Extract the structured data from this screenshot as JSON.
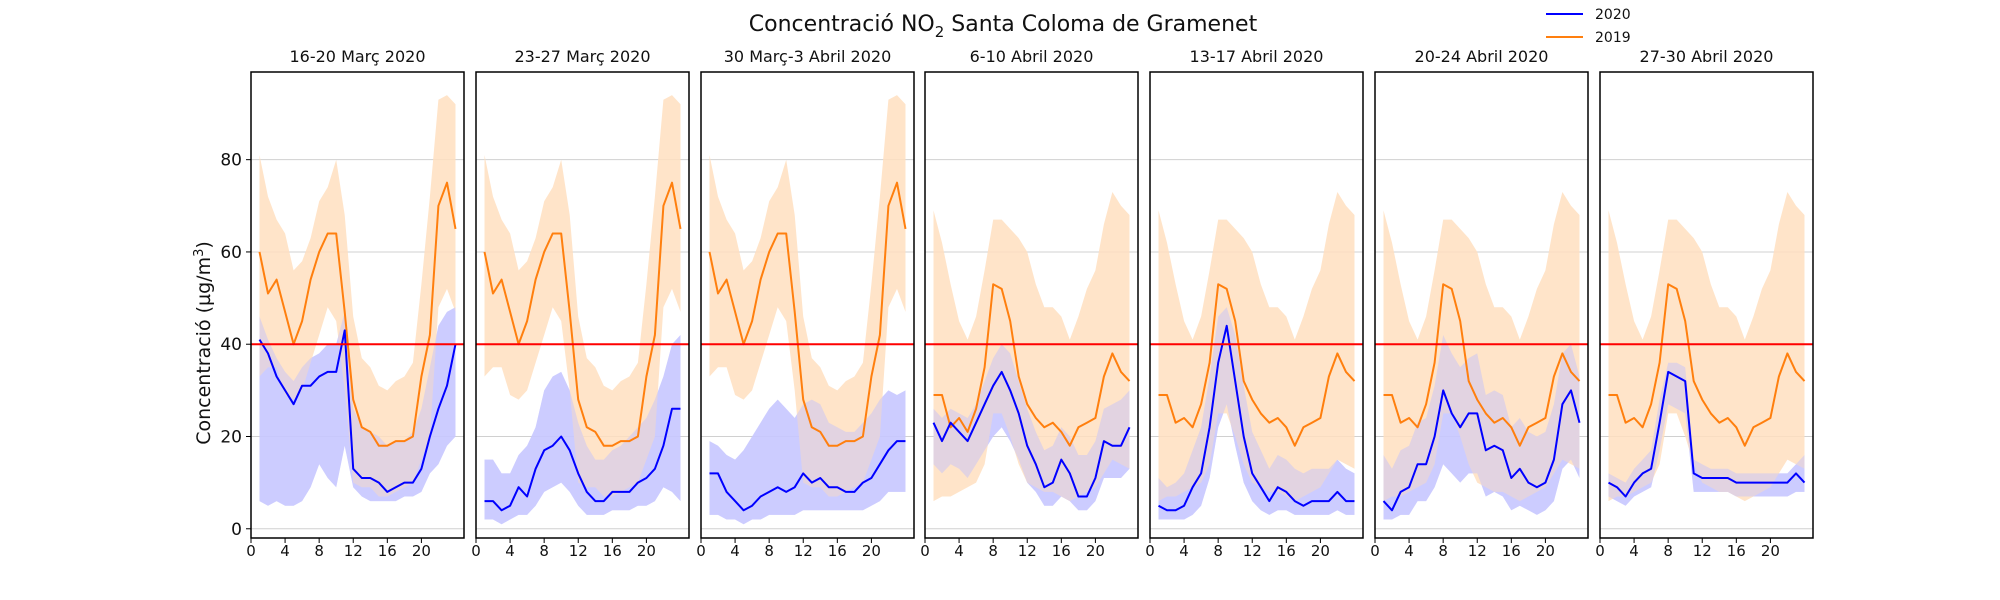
{
  "chart_data": {
    "type": "line",
    "title_main": "Concentració NO",
    "title_sub": "2",
    "title_rest": " Santa Coloma de Gramenet",
    "ylabel_main": "Concentració (µg/m",
    "ylabel_sup": "3",
    "ylabel_end": ")",
    "ylim": [
      -2,
      99
    ],
    "xlim": [
      0,
      25
    ],
    "yticks": [
      0,
      20,
      40,
      60,
      80
    ],
    "xticks": [
      0,
      4,
      8,
      12,
      16,
      20
    ],
    "x_hours": [
      1,
      2,
      3,
      4,
      5,
      6,
      7,
      8,
      9,
      10,
      11,
      12,
      13,
      14,
      15,
      16,
      17,
      18,
      19,
      20,
      21,
      22,
      23,
      24
    ],
    "reference_line": {
      "value": 40,
      "color": "#ff0000"
    },
    "grid": true,
    "legend": [
      {
        "name": "2020",
        "color": "#0000ff"
      },
      {
        "name": "2019",
        "color": "#ff7f0e"
      }
    ],
    "colors": {
      "line2020": "#0000ff",
      "line2019": "#ff7f0e",
      "band2020": "#c8c8ff",
      "band2019": "#ffdfbf",
      "overlap": "#c8a8d6"
    },
    "panels": [
      {
        "title": "16-20 Març 2020",
        "s2020": [
          41,
          38,
          33,
          30,
          27,
          31,
          31,
          33,
          34,
          34,
          43,
          13,
          11,
          11,
          10,
          8,
          9,
          10,
          10,
          13,
          20,
          26,
          31,
          40
        ],
        "b2020_lo": [
          6,
          5,
          6,
          5,
          5,
          6,
          9,
          14,
          11,
          9,
          18,
          9,
          7,
          6,
          6,
          6,
          6,
          7,
          7,
          8,
          12,
          14,
          18,
          20
        ],
        "b2020_hi": [
          46,
          41,
          37,
          34,
          32,
          35,
          37,
          38,
          40,
          40,
          47,
          26,
          22,
          21,
          20,
          18,
          19,
          19,
          21,
          26,
          35,
          44,
          47,
          48
        ],
        "s2019": [
          60,
          51,
          54,
          47,
          40,
          45,
          54,
          60,
          64,
          64,
          47,
          28,
          22,
          21,
          18,
          18,
          19,
          19,
          20,
          33,
          42,
          70,
          75,
          65
        ],
        "b2019_lo": [
          33,
          35,
          35,
          29,
          28,
          30,
          36,
          42,
          48,
          45,
          30,
          10,
          9,
          9,
          7,
          7,
          8,
          9,
          10,
          15,
          20,
          48,
          52,
          47
        ],
        "b2019_hi": [
          81,
          72,
          67,
          64,
          56,
          58,
          63,
          71,
          74,
          80,
          68,
          46,
          37,
          35,
          31,
          30,
          32,
          33,
          36,
          53,
          72,
          93,
          94,
          92
        ]
      },
      {
        "title": "23-27 Març 2020",
        "s2020": [
          6,
          6,
          4,
          5,
          9,
          7,
          13,
          17,
          18,
          20,
          17,
          12,
          8,
          6,
          6,
          8,
          8,
          8,
          10,
          11,
          13,
          18,
          26,
          26
        ],
        "b2020_lo": [
          2,
          2,
          1,
          2,
          3,
          3,
          5,
          8,
          9,
          10,
          8,
          5,
          3,
          3,
          3,
          4,
          4,
          4,
          5,
          5,
          6,
          9,
          8,
          6
        ],
        "b2020_hi": [
          15,
          15,
          12,
          12,
          16,
          18,
          22,
          30,
          33,
          34,
          30,
          23,
          18,
          15,
          15,
          17,
          18,
          20,
          22,
          24,
          28,
          33,
          40,
          42
        ],
        "s2019": [
          60,
          51,
          54,
          47,
          40,
          45,
          54,
          60,
          64,
          64,
          47,
          28,
          22,
          21,
          18,
          18,
          19,
          19,
          20,
          33,
          42,
          70,
          75,
          65
        ],
        "b2019_lo": [
          33,
          35,
          35,
          29,
          28,
          30,
          36,
          42,
          48,
          45,
          30,
          10,
          9,
          9,
          7,
          7,
          8,
          9,
          10,
          15,
          20,
          48,
          52,
          47
        ],
        "b2019_hi": [
          81,
          72,
          67,
          64,
          56,
          58,
          63,
          71,
          74,
          80,
          68,
          46,
          37,
          35,
          31,
          30,
          32,
          33,
          36,
          53,
          72,
          93,
          94,
          92
        ]
      },
      {
        "title": "30 Març-3 Abril 2020",
        "s2020": [
          12,
          12,
          8,
          6,
          4,
          5,
          7,
          8,
          9,
          8,
          9,
          12,
          10,
          11,
          9,
          9,
          8,
          8,
          10,
          11,
          14,
          17,
          19,
          19
        ],
        "b2020_lo": [
          3,
          3,
          2,
          2,
          1,
          2,
          2,
          3,
          3,
          3,
          3,
          4,
          4,
          4,
          4,
          4,
          4,
          4,
          4,
          5,
          6,
          8,
          8,
          8
        ],
        "b2020_hi": [
          19,
          18,
          16,
          15,
          17,
          20,
          23,
          26,
          28,
          26,
          24,
          27,
          28,
          27,
          23,
          22,
          21,
          21,
          23,
          25,
          28,
          30,
          29,
          30
        ],
        "s2019": [
          60,
          51,
          54,
          47,
          40,
          45,
          54,
          60,
          64,
          64,
          47,
          28,
          22,
          21,
          18,
          18,
          19,
          19,
          20,
          33,
          42,
          70,
          75,
          65
        ],
        "b2019_lo": [
          33,
          35,
          35,
          29,
          28,
          30,
          36,
          42,
          48,
          45,
          30,
          10,
          9,
          9,
          7,
          7,
          8,
          9,
          10,
          15,
          20,
          48,
          52,
          47
        ],
        "b2019_hi": [
          81,
          72,
          67,
          64,
          56,
          58,
          63,
          71,
          74,
          80,
          68,
          46,
          37,
          35,
          31,
          30,
          32,
          33,
          36,
          53,
          72,
          93,
          94,
          92
        ]
      },
      {
        "title": "6-10 Abril 2020",
        "s2020": [
          23,
          19,
          23,
          21,
          19,
          23,
          27,
          31,
          34,
          30,
          25,
          18,
          14,
          9,
          10,
          15,
          12,
          7,
          7,
          11,
          19,
          18,
          18,
          22
        ],
        "b2020_lo": [
          14,
          12,
          14,
          13,
          11,
          14,
          17,
          20,
          22,
          19,
          15,
          10,
          8,
          5,
          5,
          7,
          6,
          4,
          4,
          6,
          11,
          11,
          11,
          13
        ],
        "b2020_hi": [
          26,
          24,
          26,
          25,
          24,
          27,
          32,
          37,
          40,
          38,
          32,
          26,
          21,
          17,
          18,
          22,
          20,
          16,
          16,
          19,
          26,
          27,
          28,
          30
        ],
        "s2019": [
          29,
          29,
          22,
          24,
          21,
          26,
          35,
          53,
          52,
          45,
          33,
          27,
          24,
          22,
          23,
          21,
          18,
          22,
          23,
          24,
          33,
          38,
          34,
          32
        ],
        "b2019_lo": [
          6,
          7,
          7,
          8,
          9,
          10,
          14,
          25,
          25,
          20,
          14,
          10,
          9,
          8,
          8,
          7,
          6,
          7,
          8,
          9,
          12,
          15,
          14,
          13
        ],
        "b2019_hi": [
          69,
          62,
          53,
          45,
          41,
          46,
          56,
          67,
          67,
          65,
          63,
          60,
          53,
          48,
          48,
          46,
          41,
          46,
          52,
          56,
          66,
          73,
          70,
          68
        ]
      },
      {
        "title": "13-17 Abril 2020",
        "s2020": [
          5,
          4,
          4,
          5,
          9,
          12,
          22,
          36,
          44,
          32,
          20,
          12,
          9,
          6,
          9,
          8,
          6,
          5,
          6,
          6,
          6,
          8,
          6,
          6
        ],
        "b2020_lo": [
          2,
          2,
          2,
          2,
          3,
          5,
          11,
          22,
          27,
          18,
          10,
          6,
          4,
          3,
          4,
          4,
          3,
          3,
          3,
          3,
          3,
          4,
          3,
          3
        ],
        "b2020_hi": [
          11,
          9,
          10,
          12,
          17,
          22,
          33,
          46,
          48,
          42,
          31,
          21,
          17,
          13,
          16,
          15,
          13,
          12,
          13,
          13,
          13,
          15,
          13,
          12
        ],
        "s2019": [
          29,
          29,
          23,
          24,
          22,
          27,
          36,
          53,
          52,
          45,
          32,
          28,
          25,
          23,
          24,
          22,
          18,
          22,
          23,
          24,
          33,
          38,
          34,
          32
        ],
        "b2019_lo": [
          6,
          7,
          7,
          8,
          9,
          10,
          14,
          25,
          25,
          20,
          14,
          10,
          9,
          8,
          8,
          7,
          6,
          7,
          8,
          9,
          12,
          15,
          14,
          13
        ],
        "b2019_hi": [
          69,
          62,
          53,
          45,
          41,
          46,
          56,
          67,
          67,
          65,
          63,
          60,
          53,
          48,
          48,
          46,
          41,
          46,
          52,
          56,
          66,
          73,
          70,
          68
        ]
      },
      {
        "title": "20-24 Abril 2020",
        "s2020": [
          6,
          4,
          8,
          9,
          14,
          14,
          20,
          30,
          25,
          22,
          25,
          25,
          17,
          18,
          17,
          11,
          13,
          10,
          9,
          10,
          15,
          27,
          30,
          23
        ],
        "b2020_lo": [
          2,
          2,
          3,
          3,
          6,
          6,
          9,
          14,
          12,
          10,
          12,
          12,
          7,
          8,
          7,
          4,
          5,
          4,
          3,
          4,
          6,
          13,
          15,
          11
        ],
        "b2020_hi": [
          16,
          13,
          17,
          18,
          23,
          24,
          31,
          42,
          38,
          35,
          37,
          38,
          29,
          30,
          29,
          22,
          24,
          21,
          20,
          21,
          27,
          38,
          40,
          33
        ],
        "s2019": [
          29,
          29,
          23,
          24,
          22,
          27,
          36,
          53,
          52,
          45,
          32,
          28,
          25,
          23,
          24,
          22,
          18,
          22,
          23,
          24,
          33,
          38,
          34,
          32
        ],
        "b2019_lo": [
          6,
          7,
          7,
          8,
          9,
          10,
          14,
          25,
          25,
          20,
          14,
          10,
          9,
          8,
          8,
          7,
          6,
          7,
          8,
          9,
          12,
          15,
          14,
          13
        ],
        "b2019_hi": [
          69,
          62,
          53,
          45,
          41,
          46,
          56,
          67,
          67,
          65,
          63,
          60,
          53,
          48,
          48,
          46,
          41,
          46,
          52,
          56,
          66,
          73,
          70,
          68
        ]
      },
      {
        "title": "27-30 Abril 2020",
        "s2020": [
          10,
          9,
          7,
          10,
          12,
          13,
          23,
          34,
          33,
          32,
          12,
          11,
          11,
          11,
          11,
          10,
          10,
          10,
          10,
          10,
          10,
          10,
          12,
          10
        ],
        "b2020_lo": [
          7,
          6,
          5,
          7,
          8,
          9,
          17,
          27,
          26,
          25,
          8,
          8,
          8,
          8,
          8,
          7,
          7,
          7,
          7,
          7,
          7,
          7,
          8,
          8
        ],
        "b2020_hi": [
          12,
          11,
          10,
          13,
          15,
          17,
          28,
          36,
          36,
          35,
          15,
          14,
          13,
          13,
          13,
          12,
          12,
          12,
          12,
          12,
          12,
          12,
          14,
          16
        ],
        "s2019": [
          29,
          29,
          23,
          24,
          22,
          27,
          36,
          53,
          52,
          45,
          32,
          28,
          25,
          23,
          24,
          22,
          18,
          22,
          23,
          24,
          33,
          38,
          34,
          32
        ],
        "b2019_lo": [
          6,
          7,
          7,
          8,
          9,
          10,
          14,
          25,
          25,
          20,
          14,
          10,
          9,
          8,
          8,
          7,
          6,
          7,
          8,
          9,
          12,
          15,
          14,
          13
        ],
        "b2019_hi": [
          69,
          62,
          53,
          45,
          41,
          46,
          56,
          67,
          67,
          65,
          63,
          60,
          53,
          48,
          48,
          46,
          41,
          46,
          52,
          56,
          66,
          73,
          70,
          68
        ]
      }
    ]
  }
}
